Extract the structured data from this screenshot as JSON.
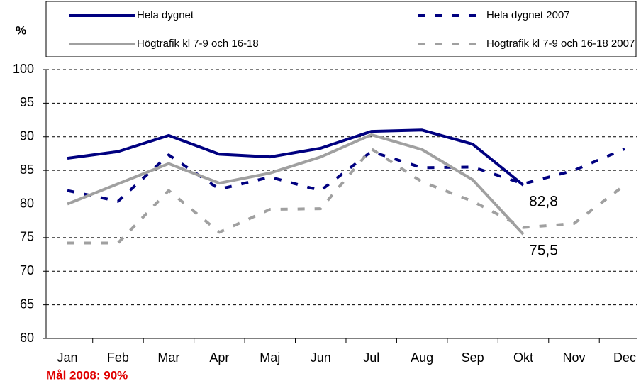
{
  "chart_data": {
    "type": "line",
    "y_axis_label": "%",
    "note": "Mål 2008: 90%",
    "categories": [
      "Jan",
      "Feb",
      "Mar",
      "Apr",
      "Maj",
      "Jun",
      "Jul",
      "Aug",
      "Sep",
      "Okt",
      "Nov",
      "Dec"
    ],
    "series": [
      {
        "name": "Hela dygnet",
        "color": "#000080",
        "dashed": false,
        "values": [
          86.8,
          87.8,
          90.2,
          87.4,
          87.0,
          88.3,
          90.8,
          91.0,
          88.9,
          82.8,
          null,
          null
        ],
        "value_labels": [
          null,
          null,
          null,
          null,
          null,
          null,
          null,
          null,
          null,
          "82,8",
          null,
          null
        ]
      },
      {
        "name": "Hela dygnet 2007",
        "color": "#000080",
        "dashed": true,
        "values": [
          82.0,
          80.4,
          87.3,
          82.2,
          84.0,
          82.0,
          87.8,
          85.4,
          85.5,
          83.0,
          85.0,
          88.2
        ]
      },
      {
        "name": "Högtrafik kl 7-9 och 16-18",
        "color": "#a0a0a0",
        "dashed": false,
        "values": [
          80.0,
          83.0,
          86.0,
          83.1,
          84.6,
          87.0,
          90.3,
          88.1,
          83.6,
          75.5,
          null,
          null
        ],
        "value_labels": [
          null,
          null,
          null,
          null,
          null,
          null,
          null,
          null,
          null,
          "75,5",
          null,
          null
        ]
      },
      {
        "name": "Högtrafik kl 7-9 och 16-18 2007",
        "color": "#a0a0a0",
        "dashed": true,
        "values": [
          74.2,
          74.2,
          82.0,
          75.8,
          79.2,
          79.3,
          88.2,
          83.3,
          80.4,
          76.5,
          77.1,
          82.8
        ]
      }
    ],
    "ylim": [
      60,
      100
    ],
    "yticks": [
      60,
      65,
      70,
      75,
      80,
      85,
      90,
      95,
      100
    ],
    "grid": true
  }
}
